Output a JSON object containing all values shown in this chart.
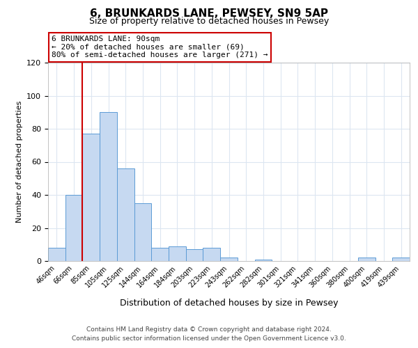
{
  "title": "6, BRUNKARDS LANE, PEWSEY, SN9 5AP",
  "subtitle": "Size of property relative to detached houses in Pewsey",
  "xlabel": "Distribution of detached houses by size in Pewsey",
  "ylabel": "Number of detached properties",
  "bin_labels": [
    "46sqm",
    "66sqm",
    "85sqm",
    "105sqm",
    "125sqm",
    "144sqm",
    "164sqm",
    "184sqm",
    "203sqm",
    "223sqm",
    "243sqm",
    "262sqm",
    "282sqm",
    "301sqm",
    "321sqm",
    "341sqm",
    "360sqm",
    "380sqm",
    "400sqm",
    "419sqm",
    "439sqm"
  ],
  "bar_values": [
    8,
    40,
    77,
    90,
    56,
    35,
    8,
    9,
    7,
    8,
    2,
    0,
    1,
    0,
    0,
    0,
    0,
    0,
    2,
    0,
    2
  ],
  "bar_color": "#c6d9f1",
  "bar_edge_color": "#5b9bd5",
  "property_line_label": "6 BRUNKARDS LANE: 90sqm",
  "annotation_smaller": "← 20% of detached houses are smaller (69)",
  "annotation_larger": "80% of semi-detached houses are larger (271) →",
  "annotation_box_color": "#ffffff",
  "annotation_box_edge": "#cc0000",
  "line_color": "#cc0000",
  "ylim": [
    0,
    120
  ],
  "yticks": [
    0,
    20,
    40,
    60,
    80,
    100,
    120
  ],
  "footer_line1": "Contains HM Land Registry data © Crown copyright and database right 2024.",
  "footer_line2": "Contains public sector information licensed under the Open Government Licence v3.0.",
  "background_color": "#ffffff",
  "grid_color": "#dce6f1"
}
